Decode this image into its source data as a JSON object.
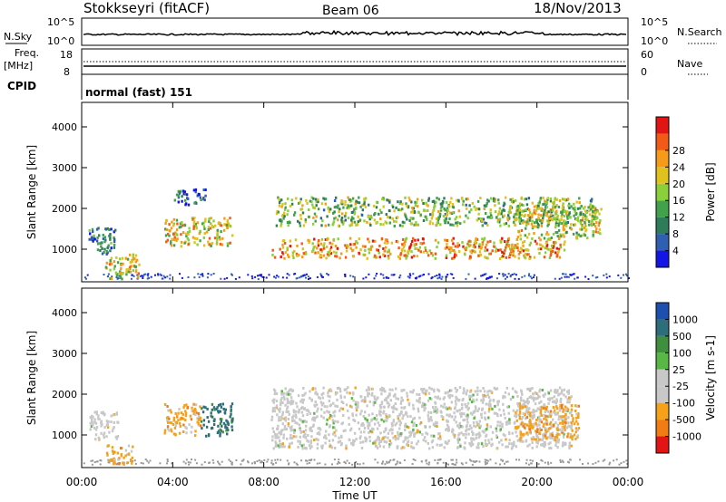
{
  "header": {
    "station": "Stokkseyri (fitACF)",
    "beam": "Beam 06",
    "date": "18/Nov/2013"
  },
  "params_panel": {
    "nsky_label": "N.Sky",
    "nsky_ticks": [
      "10^5",
      "10^0"
    ],
    "nsearch_label": "N.Search",
    "nsearch_ticks": [
      "10^5",
      "10^0"
    ],
    "freq_label": "Freq.",
    "freq_unit": "[MHz]",
    "freq_ticks": [
      "18",
      "8"
    ],
    "nave_label": "Nave",
    "nave_ticks": [
      "60",
      "0"
    ],
    "cpid_label": "CPID",
    "cpid_value": "normal (fast) 151"
  },
  "chart_data": [
    {
      "type": "heatmap",
      "name": "power",
      "ylabel": "Slant Range [km]",
      "yticks": [
        "1000",
        "2000",
        "3000",
        "4000"
      ],
      "ylim": [
        200,
        4600
      ],
      "xlim_hours": [
        0,
        24
      ],
      "colorbar": {
        "label": "Power [dB]",
        "ticks": [
          "4",
          "8",
          "12",
          "16",
          "20",
          "24",
          "28"
        ],
        "colors": [
          "#1414e6",
          "#2f5fb0",
          "#2e7d5a",
          "#41a24b",
          "#8ad03a",
          "#e0c21e",
          "#f59a1b",
          "#f25a18",
          "#e21414"
        ]
      },
      "regions": [
        {
          "hours": [
            0.3,
            1.5
          ],
          "km": [
            900,
            1600
          ],
          "level": 0.25
        },
        {
          "hours": [
            1.0,
            2.6
          ],
          "km": [
            300,
            900
          ],
          "level": 0.55
        },
        {
          "hours": [
            3.6,
            6.6
          ],
          "km": [
            1100,
            1800
          ],
          "level": 0.6
        },
        {
          "hours": [
            4.0,
            5.4
          ],
          "km": [
            2100,
            2500
          ],
          "level": 0.2
        },
        {
          "hours": [
            8.3,
            21.2
          ],
          "km": [
            800,
            1300
          ],
          "level": 0.7
        },
        {
          "hours": [
            8.5,
            22.5
          ],
          "km": [
            1600,
            2300
          ],
          "level": 0.45
        },
        {
          "hours": [
            19.0,
            22.8
          ],
          "km": [
            1300,
            2100
          ],
          "level": 0.55
        }
      ]
    },
    {
      "type": "heatmap",
      "name": "velocity",
      "ylabel": "Slant Range [km]",
      "yticks": [
        "1000",
        "2000",
        "3000",
        "4000"
      ],
      "ylim": [
        200,
        4600
      ],
      "xlim_hours": [
        0,
        24
      ],
      "xticks": [
        "00:00",
        "04:00",
        "08:00",
        "12:00",
        "16:00",
        "20:00",
        "00:00"
      ],
      "xlabel": "Time UT",
      "colorbar": {
        "label": "Velocity [m s-1]",
        "ticks": [
          "1000",
          "500",
          "100",
          "25",
          "-25",
          "-100",
          "-500",
          "-1000"
        ],
        "colors": [
          "#1d4fb0",
          "#2e6e7a",
          "#3f8f3f",
          "#59b845",
          "#c8c8c8",
          "#c8c8c8",
          "#f5a21a",
          "#f27c14",
          "#e21414"
        ]
      },
      "regions": [
        {
          "hours": [
            0.3,
            1.6
          ],
          "km": [
            900,
            1600
          ],
          "color": "gray"
        },
        {
          "hours": [
            1.0,
            2.2
          ],
          "km": [
            300,
            800
          ],
          "color": "orange"
        },
        {
          "hours": [
            3.6,
            5.2
          ],
          "km": [
            1000,
            1800
          ],
          "color": "orange"
        },
        {
          "hours": [
            5.2,
            6.6
          ],
          "km": [
            1000,
            1800
          ],
          "color": "green"
        },
        {
          "hours": [
            8.3,
            21.5
          ],
          "km": [
            700,
            2200
          ],
          "color": "gray"
        },
        {
          "hours": [
            19.0,
            21.8
          ],
          "km": [
            900,
            1800
          ],
          "color": "orange"
        }
      ]
    }
  ],
  "colors": {
    "axis": "#000000",
    "background": "#ffffff",
    "ground_scatter": "#9a9a9a"
  }
}
